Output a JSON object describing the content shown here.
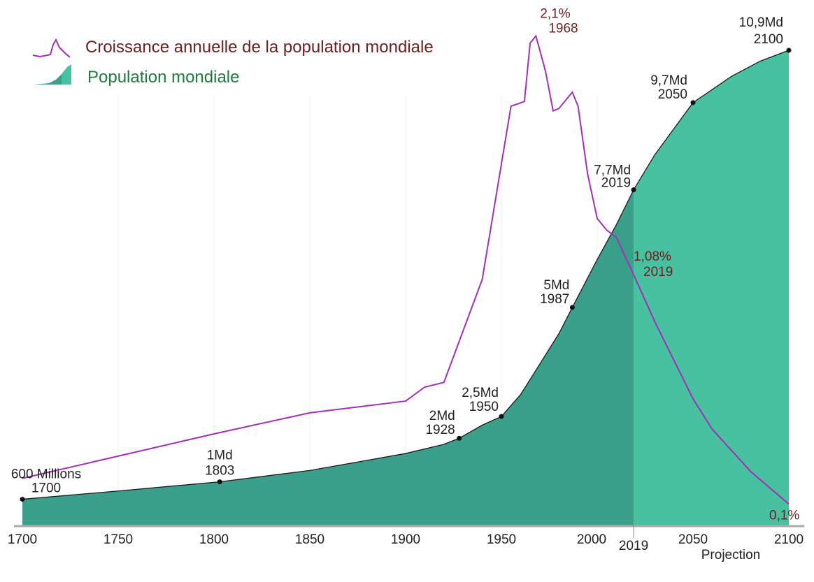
{
  "chart_data": {
    "type": "area",
    "title": "",
    "xlabel": "",
    "ylabel": "",
    "xlim": [
      1700,
      2100
    ],
    "grid": true,
    "legend_position": "top-left",
    "x_ticks": [
      "1700",
      "1750",
      "1800",
      "1850",
      "1900",
      "1950",
      "2000",
      "2019",
      "2050",
      "2100"
    ],
    "projection_label": "Projection",
    "projection_start": 2019,
    "series": [
      {
        "name": "Croissance annuelle de la population mondiale",
        "type": "line",
        "unit": "%",
        "color": "#a22fb5",
        "x": [
          1700,
          1800,
          1850,
          1900,
          1910,
          1920,
          1940,
          1955,
          1962,
          1965,
          1968,
          1973,
          1977,
          1980,
          1987,
          1990,
          1995,
          2000,
          2005,
          2010,
          2019,
          2030,
          2050,
          2060,
          2080,
          2100
        ],
        "y": [
          0.21,
          0.4,
          0.49,
          0.54,
          0.6,
          0.62,
          1.06,
          1.8,
          1.82,
          2.07,
          2.1,
          1.95,
          1.78,
          1.79,
          1.86,
          1.8,
          1.51,
          1.32,
          1.27,
          1.24,
          1.08,
          0.88,
          0.55,
          0.42,
          0.24,
          0.1
        ]
      },
      {
        "name": "Population mondiale",
        "type": "area",
        "unit": "Md",
        "color_historical": "#3ba08b",
        "color_projection": "#48c1a1",
        "x": [
          1700,
          1750,
          1803,
          1850,
          1900,
          1920,
          1928,
          1940,
          1950,
          1960,
          1970,
          1980,
          1987,
          2000,
          2010,
          2019,
          2030,
          2050,
          2070,
          2085,
          2100
        ],
        "y": [
          0.6,
          0.79,
          1.0,
          1.26,
          1.65,
          1.86,
          2.0,
          2.3,
          2.5,
          3.0,
          3.7,
          4.4,
          5.0,
          6.1,
          6.9,
          7.7,
          8.5,
          9.7,
          10.3,
          10.65,
          10.9
        ]
      }
    ],
    "population_annotations": [
      {
        "value": "600 Millions",
        "year": "1700",
        "x": 1700,
        "y": 0.6
      },
      {
        "value": "1Md",
        "year": "1803",
        "x": 1803,
        "y": 1.0
      },
      {
        "value": "2Md",
        "year": "1928",
        "x": 1928,
        "y": 2.0
      },
      {
        "value": "2,5Md",
        "year": "1950",
        "x": 1950,
        "y": 2.5
      },
      {
        "value": "5Md",
        "year": "1987",
        "x": 1987,
        "y": 5.0
      },
      {
        "value": "7,7Md",
        "year": "2019",
        "x": 2019,
        "y": 7.7
      },
      {
        "value": "9,7Md",
        "year": "2050",
        "x": 2050,
        "y": 9.7
      },
      {
        "value": "10,9Md",
        "year": "2100",
        "x": 2100,
        "y": 10.9
      }
    ],
    "growth_annotations": [
      {
        "value": "2,1%",
        "year": "1968",
        "x": 1968,
        "y": 2.1
      },
      {
        "value": "1,08%",
        "year": "2019",
        "x": 2019,
        "y": 1.08
      },
      {
        "value": "0,1%",
        "year": "",
        "x": 2100,
        "y": 0.1
      }
    ]
  }
}
